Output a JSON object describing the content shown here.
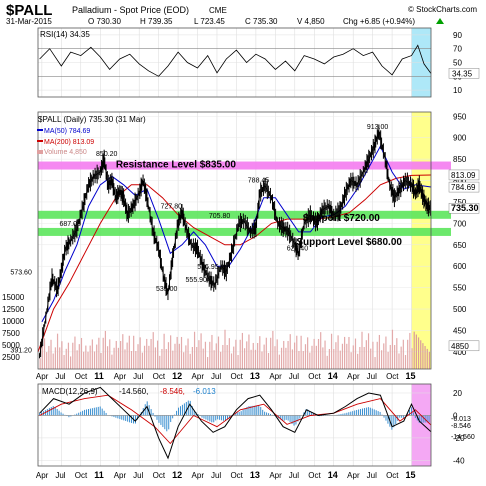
{
  "header": {
    "symbol": "$PALL",
    "name": "Palladium - Spot Price (EOD)",
    "exchange": "CME",
    "credit": "© StockCharts.com",
    "date": "31-Mar-2015",
    "open": "O 730.30",
    "high": "H 739.35",
    "low": "L 723.45",
    "close": "C 735.30",
    "volume": "V 4,850",
    "change": "Chg +6.85 (+0.94%)",
    "change_arrow": "triangle-up-icon"
  },
  "rsi_panel": {
    "label": "RSI(14) 34.35",
    "value_label": "34.35",
    "ticks": [
      "90",
      "70",
      "50",
      "30",
      "10"
    ],
    "tick_values": [
      90,
      70,
      50,
      30,
      10
    ],
    "ylim": [
      0,
      100
    ],
    "bands": [
      30,
      70
    ],
    "highlight_color": "#aee8f8"
  },
  "price_panel": {
    "legend_title": "$PALL (Daily) 735.30 (31 Mar)",
    "legend_ma50": "MA(50) 784.69",
    "legend_ma200": "MA(200) 813.09",
    "legend_volume": "Volume 4,850",
    "ticks": [
      "950",
      "900",
      "850",
      "800",
      "750",
      "700",
      "650",
      "600",
      "550",
      "500",
      "450",
      "400"
    ],
    "tick_values": [
      950,
      900,
      850,
      800,
      750,
      700,
      650,
      600,
      550,
      500,
      450,
      400
    ],
    "ylim": [
      360,
      960
    ],
    "volume_ticks": [
      "15000",
      "12500",
      "10000",
      "7500",
      "5000",
      "2500"
    ],
    "volume_tick_values": [
      15000,
      12500,
      10000,
      7500,
      5000,
      2500
    ],
    "volume_ylim": [
      0,
      16500
    ],
    "right_labels": [
      {
        "text": "813.09",
        "value": 813.09,
        "bg": "#ffffff",
        "fg": "#000000"
      },
      {
        "text": "784.69",
        "value": 784.69,
        "bg": "#ffffff",
        "fg": "#000000"
      },
      {
        "text": "735.30",
        "value": 735.3,
        "bg": "#ffffff",
        "fg": "#000000"
      },
      {
        "text": "4850",
        "value": 4850,
        "bg": "#ffffff",
        "fg": "#000000",
        "volume": true
      }
    ],
    "annotations": [
      {
        "text": "913.00",
        "x": 2014.58,
        "y": 913
      },
      {
        "text": "850.20",
        "x": 2011.1,
        "y": 850.2
      },
      {
        "text": "788.45",
        "x": 2013.05,
        "y": 788.45
      },
      {
        "text": "727.80",
        "x": 2011.93,
        "y": 727.8
      },
      {
        "text": "705.80",
        "x": 2012.55,
        "y": 705.8
      },
      {
        "text": "687.00",
        "x": 2010.63,
        "y": 687
      },
      {
        "text": "629.40",
        "x": 2013.55,
        "y": 629.4
      },
      {
        "text": "586.95",
        "x": 2012.4,
        "y": 586.95
      },
      {
        "text": "573.60",
        "x": 2010.0,
        "y": 573.6
      },
      {
        "text": "555.90",
        "x": 2012.25,
        "y": 555.9
      },
      {
        "text": "535.00",
        "x": 2011.87,
        "y": 535
      },
      {
        "text": "391.20",
        "x": 2010.0,
        "y": 391.2
      }
    ],
    "levels": [
      {
        "label": "Resistance Level $835.00",
        "value": 835,
        "color": "#f47cf0"
      },
      {
        "label": "Support $720.00",
        "value": 720,
        "color": "#5ce65c"
      },
      {
        "label": "Support Level $680.00",
        "value": 680,
        "color": "#5ce65c"
      }
    ],
    "highlight_color": "#ffff8c"
  },
  "macd_panel": {
    "label_prefix": "MACD(12,26,9)",
    "macd_value": "-14.560,",
    "signal_value": "-8.546,",
    "hist_value": "-6.013",
    "ticks": [
      "20",
      "0",
      "-20",
      "-40"
    ],
    "tick_values": [
      20,
      0,
      -20,
      -40
    ],
    "ylim": [
      -45,
      28
    ],
    "right_labels": [
      "-6.013",
      "-8.546",
      "-14.560"
    ],
    "highlight_color": "#f4a8f4"
  },
  "x_axis": {
    "labels": [
      "Apr",
      "Jul",
      "Oct",
      "11",
      "Apr",
      "Jul",
      "Oct",
      "12",
      "Apr",
      "Jul",
      "Oct",
      "13",
      "Apr",
      "Jul",
      "Oct",
      "14",
      "Apr",
      "Jul",
      "Oct",
      "15"
    ],
    "positions": [
      2010.25,
      2010.5,
      2010.75,
      2011.0,
      2011.25,
      2011.5,
      2011.75,
      2012.0,
      2012.25,
      2012.5,
      2012.75,
      2013.0,
      2013.25,
      2013.5,
      2013.75,
      2014.0,
      2014.25,
      2014.5,
      2014.75,
      2015.0
    ],
    "bold_years": [
      "11",
      "12",
      "13",
      "14",
      "15"
    ]
  },
  "chart_data": {
    "type": "line",
    "title": "$PALL Palladium - Spot Price (EOD)",
    "x_units": "year",
    "xlim": [
      2010.2,
      2015.25
    ],
    "highlight_range": [
      2015.0,
      2015.25
    ],
    "price_series": {
      "name": "$PALL (Daily)",
      "x": [
        2010.22,
        2010.3,
        2010.38,
        2010.45,
        2010.5,
        2010.55,
        2010.62,
        2010.7,
        2010.78,
        2010.85,
        2010.92,
        2011.0,
        2011.05,
        2011.1,
        2011.15,
        2011.2,
        2011.25,
        2011.3,
        2011.35,
        2011.42,
        2011.5,
        2011.55,
        2011.6,
        2011.68,
        2011.75,
        2011.82,
        2011.87,
        2011.93,
        2012.0,
        2012.05,
        2012.1,
        2012.17,
        2012.25,
        2012.32,
        2012.4,
        2012.47,
        2012.55,
        2012.62,
        2012.7,
        2012.78,
        2012.85,
        2012.93,
        2013.0,
        2013.05,
        2013.12,
        2013.2,
        2013.28,
        2013.35,
        2013.42,
        2013.5,
        2013.55,
        2013.62,
        2013.7,
        2013.78,
        2013.85,
        2013.93,
        2014.0,
        2014.08,
        2014.15,
        2014.22,
        2014.3,
        2014.38,
        2014.45,
        2014.52,
        2014.58,
        2014.65,
        2014.72,
        2014.78,
        2014.85,
        2014.92,
        2015.0,
        2015.05,
        2015.1,
        2015.15,
        2015.2,
        2015.25
      ],
      "y": [
        391,
        480,
        573,
        545,
        590,
        640,
        660,
        687,
        740,
        790,
        810,
        820,
        850,
        790,
        800,
        760,
        775,
        760,
        720,
        740,
        770,
        800,
        760,
        680,
        640,
        570,
        535,
        620,
        700,
        727,
        690,
        650,
        640,
        600,
        570,
        556,
        600,
        587,
        640,
        700,
        706,
        680,
        690,
        770,
        788,
        760,
        700,
        690,
        680,
        650,
        629,
        700,
        720,
        700,
        730,
        740,
        720,
        730,
        770,
        800,
        790,
        820,
        850,
        880,
        913,
        860,
        790,
        760,
        780,
        800,
        790,
        770,
        790,
        760,
        740,
        735
      ]
    },
    "ma50_series": {
      "name": "MA(50)",
      "x": [
        2010.25,
        2010.4,
        2010.55,
        2010.7,
        2010.85,
        2011.0,
        2011.15,
        2011.3,
        2011.45,
        2011.6,
        2011.75,
        2011.9,
        2012.05,
        2012.2,
        2012.35,
        2012.5,
        2012.65,
        2012.8,
        2012.95,
        2013.1,
        2013.25,
        2013.4,
        2013.55,
        2013.7,
        2013.85,
        2014.0,
        2014.15,
        2014.3,
        2014.45,
        2014.6,
        2014.75,
        2014.9,
        2015.05,
        2015.25
      ],
      "y": [
        470,
        520,
        590,
        650,
        740,
        790,
        810,
        790,
        765,
        780,
        710,
        630,
        650,
        680,
        650,
        600,
        600,
        640,
        690,
        760,
        760,
        720,
        680,
        680,
        715,
        720,
        740,
        780,
        830,
        880,
        820,
        780,
        790,
        785
      ]
    },
    "ma200_series": {
      "name": "MA(200)",
      "x": [
        2010.2,
        2010.4,
        2010.6,
        2010.8,
        2011.0,
        2011.2,
        2011.4,
        2011.6,
        2011.8,
        2012.0,
        2012.2,
        2012.4,
        2012.6,
        2012.8,
        2013.0,
        2013.2,
        2013.4,
        2013.6,
        2013.8,
        2014.0,
        2014.2,
        2014.4,
        2014.6,
        2014.8,
        2015.0,
        2015.25
      ],
      "y": [
        400,
        500,
        560,
        630,
        700,
        760,
        790,
        790,
        760,
        720,
        690,
        670,
        650,
        650,
        670,
        700,
        710,
        710,
        710,
        715,
        725,
        755,
        790,
        805,
        812,
        813
      ]
    },
    "rsi_series": {
      "name": "RSI(14)",
      "x": [
        2010.22,
        2010.35,
        2010.5,
        2010.62,
        2010.75,
        2010.88,
        2011.0,
        2011.12,
        2011.25,
        2011.38,
        2011.5,
        2011.62,
        2011.75,
        2011.87,
        2012.0,
        2012.12,
        2012.25,
        2012.38,
        2012.5,
        2012.62,
        2012.75,
        2012.88,
        2013.0,
        2013.12,
        2013.25,
        2013.38,
        2013.5,
        2013.62,
        2013.75,
        2013.88,
        2014.0,
        2014.12,
        2014.25,
        2014.38,
        2014.5,
        2014.62,
        2014.75,
        2014.88,
        2015.0,
        2015.08,
        2015.16,
        2015.25
      ],
      "y": [
        55,
        70,
        45,
        65,
        60,
        72,
        58,
        40,
        55,
        62,
        48,
        38,
        30,
        45,
        65,
        50,
        42,
        60,
        35,
        55,
        68,
        50,
        62,
        55,
        40,
        52,
        38,
        60,
        55,
        48,
        58,
        62,
        70,
        60,
        65,
        45,
        32,
        55,
        60,
        75,
        48,
        34
      ]
    },
    "volume_series": {
      "name": "Volume",
      "x": [
        2011.0,
        2011.25,
        2011.5,
        2011.75,
        2012.0,
        2012.25,
        2012.5,
        2012.75,
        2013.0,
        2013.25,
        2013.5,
        2013.75,
        2014.0,
        2014.25,
        2014.5,
        2014.75,
        2015.0,
        2015.2
      ],
      "y": [
        4500,
        5000,
        4200,
        5500,
        4800,
        5200,
        4600,
        5000,
        5800,
        6000,
        5200,
        4800,
        5000,
        5400,
        4600,
        5200,
        7000,
        4850
      ]
    },
    "macd_series": {
      "name": "MACD(12,26,9)",
      "x": [
        2010.22,
        2010.4,
        2010.6,
        2010.8,
        2011.0,
        2011.15,
        2011.3,
        2011.45,
        2011.6,
        2011.75,
        2011.87,
        2012.0,
        2012.15,
        2012.3,
        2012.45,
        2012.6,
        2012.75,
        2012.9,
        2013.05,
        2013.2,
        2013.35,
        2013.5,
        2013.65,
        2013.8,
        2014.0,
        2014.15,
        2014.3,
        2014.45,
        2014.6,
        2014.75,
        2014.9,
        2015.0,
        2015.1,
        2015.25
      ],
      "y": [
        2,
        15,
        10,
        20,
        25,
        15,
        5,
        -5,
        8,
        -20,
        -38,
        -10,
        10,
        -5,
        -15,
        -10,
        5,
        15,
        18,
        5,
        -10,
        -15,
        5,
        0,
        2,
        8,
        15,
        20,
        18,
        -10,
        -5,
        10,
        -5,
        -14.56
      ]
    },
    "signal_series": {
      "name": "Signal",
      "x": [
        2010.22,
        2010.5,
        2010.8,
        2011.1,
        2011.4,
        2011.7,
        2011.9,
        2012.2,
        2012.5,
        2012.8,
        2013.1,
        2013.4,
        2013.7,
        2014.0,
        2014.3,
        2014.6,
        2014.85,
        2015.05,
        2015.25
      ],
      "y": [
        0,
        10,
        15,
        18,
        5,
        -10,
        -25,
        0,
        -10,
        5,
        10,
        -8,
        0,
        2,
        10,
        15,
        -5,
        5,
        -8.546
      ]
    }
  }
}
